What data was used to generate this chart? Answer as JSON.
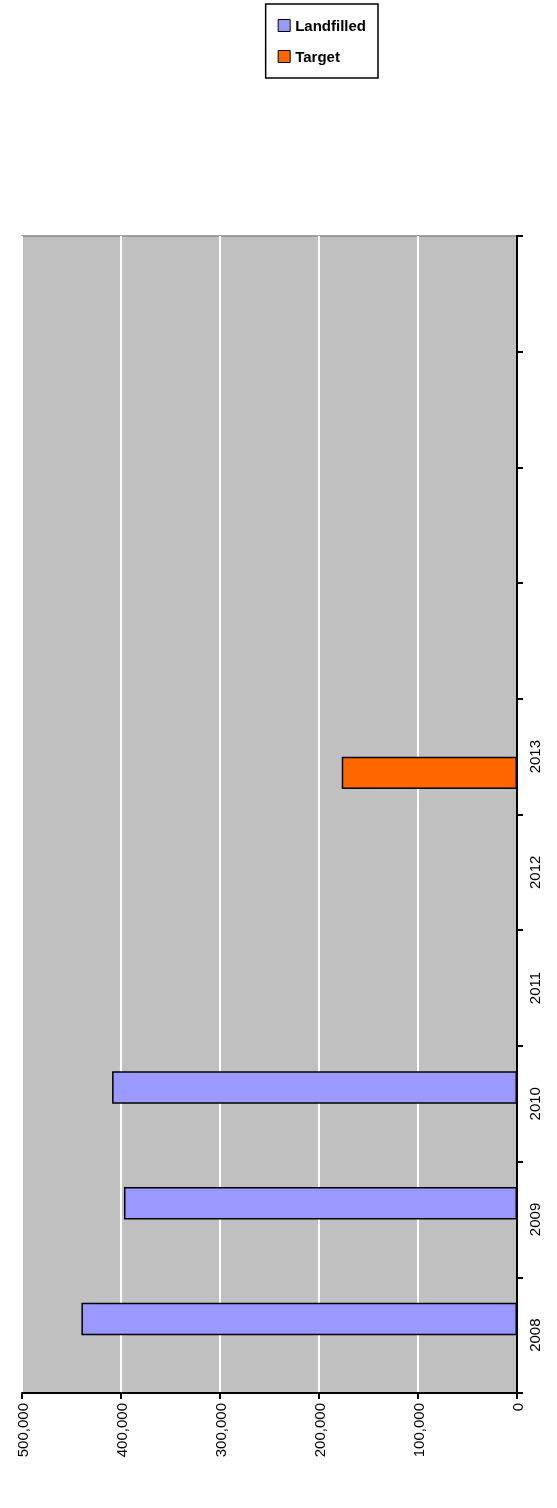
{
  "chart_data": {
    "type": "bar",
    "orientation": "horizontal",
    "categories": [
      null,
      null,
      null,
      null,
      "2013",
      "2012",
      "2011",
      "2010",
      "2009",
      "2008"
    ],
    "series": [
      {
        "name": "Landfilled",
        "color": "#9999ff",
        "values": [
          null,
          null,
          null,
          null,
          null,
          null,
          null,
          409000,
          397000,
          440000
        ]
      },
      {
        "name": "Target",
        "color": "#ff6600",
        "values": [
          null,
          null,
          null,
          null,
          177000,
          null,
          null,
          null,
          null,
          null
        ]
      }
    ],
    "xlim": [
      500000,
      0
    ],
    "xticks": [
      {
        "value": 500000,
        "label": "500,000"
      },
      {
        "value": 400000,
        "label": "400,000"
      },
      {
        "value": 300000,
        "label": "300,000"
      },
      {
        "value": 200000,
        "label": "200,000"
      },
      {
        "value": 100000,
        "label": "100,000"
      },
      {
        "value": 0,
        "label": "0"
      }
    ],
    "grid": "x",
    "legend": "top right"
  }
}
